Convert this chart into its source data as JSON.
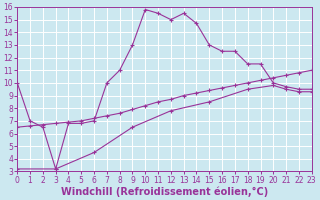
{
  "xlabel": "Windchill (Refroidissement éolien,°C)",
  "line1_x": [
    0,
    1,
    2,
    3,
    4,
    5,
    6,
    7,
    8,
    9,
    10,
    11,
    12,
    13,
    14,
    15,
    16,
    17,
    18,
    19,
    20,
    21,
    22,
    23
  ],
  "line1_y": [
    10,
    7,
    6.5,
    3.2,
    6.8,
    6.8,
    7,
    10,
    11,
    13,
    15.8,
    15.5,
    15,
    15.5,
    14.7,
    13,
    12.5,
    12.5,
    11.5,
    11.5,
    10,
    9.7,
    9.5,
    9.5
  ],
  "line2_x": [
    0,
    1,
    2,
    3,
    4,
    5,
    6,
    7,
    8,
    9,
    10,
    11,
    12,
    13,
    14,
    15,
    16,
    17,
    18,
    19,
    20,
    21,
    22,
    23
  ],
  "line2_y": [
    6.5,
    6.6,
    6.7,
    6.8,
    6.9,
    7.0,
    7.2,
    7.4,
    7.6,
    7.9,
    8.2,
    8.5,
    8.7,
    9.0,
    9.2,
    9.4,
    9.6,
    9.8,
    10.0,
    10.2,
    10.4,
    10.6,
    10.8,
    11.0
  ],
  "line3_x": [
    0,
    3,
    6,
    9,
    12,
    15,
    18,
    20,
    21,
    22,
    23
  ],
  "line3_y": [
    3.2,
    3.2,
    4.5,
    6.5,
    7.8,
    8.5,
    9.5,
    9.8,
    9.5,
    9.3,
    9.3
  ],
  "xlim": [
    0,
    23
  ],
  "ylim": [
    3,
    16
  ],
  "xticks": [
    0,
    1,
    2,
    3,
    4,
    5,
    6,
    7,
    8,
    9,
    10,
    11,
    12,
    13,
    14,
    15,
    16,
    17,
    18,
    19,
    20,
    21,
    22,
    23
  ],
  "yticks": [
    3,
    4,
    5,
    6,
    7,
    8,
    9,
    10,
    11,
    12,
    13,
    14,
    15,
    16
  ],
  "line_color": "#993399",
  "bg_color": "#cce8f0",
  "grid_color": "#ffffff",
  "tick_fontsize": 5.5,
  "xlabel_fontsize": 7
}
